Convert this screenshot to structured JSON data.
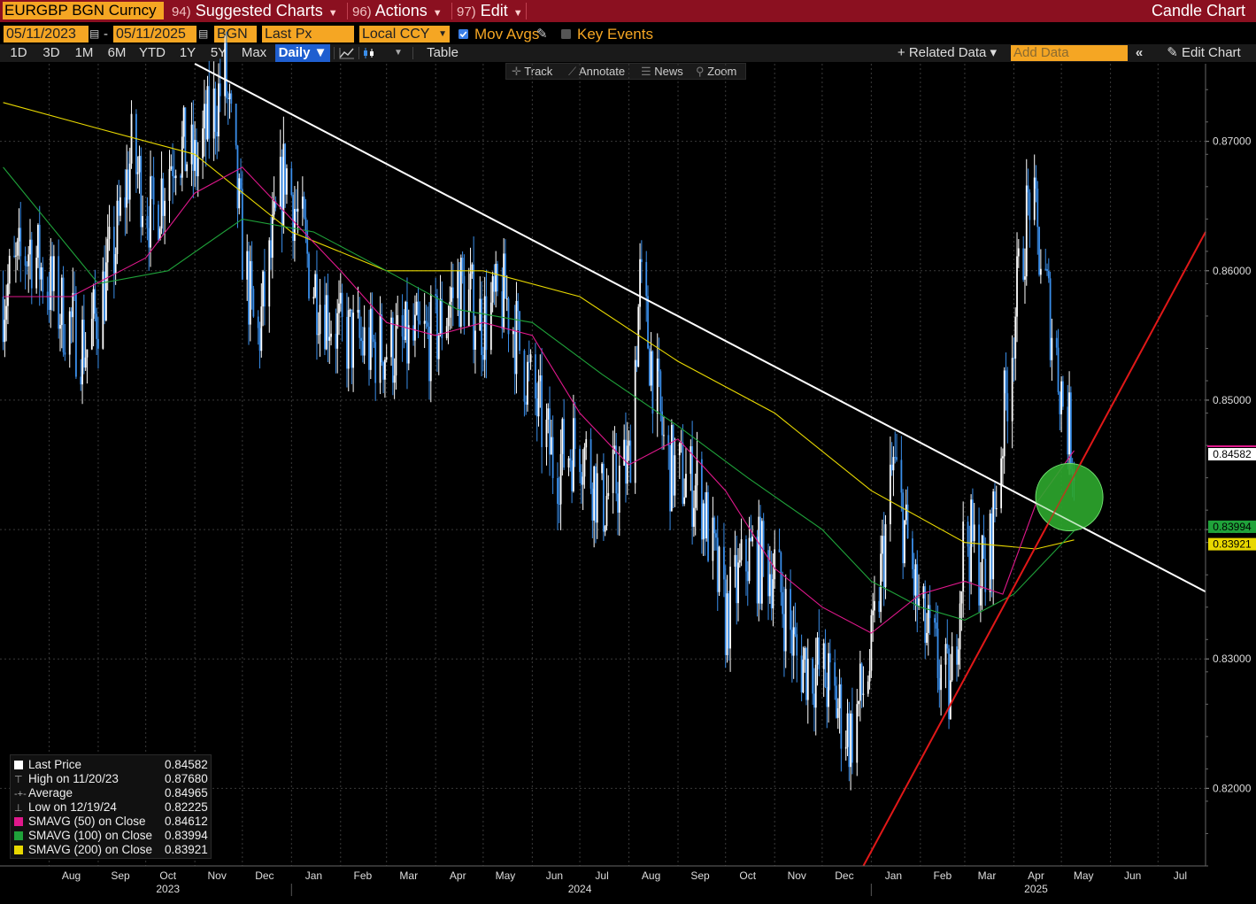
{
  "header": {
    "ticker": "EURGBP BGN Curncy",
    "menu": [
      {
        "num": "94)",
        "label": "Suggested Charts"
      },
      {
        "num": "96)",
        "label": "Actions"
      },
      {
        "num": "97)",
        "label": "Edit"
      }
    ],
    "title": "Candle Chart"
  },
  "controls": {
    "start_date": "05/11/2023",
    "date_sep": "-",
    "end_date": "05/11/2025",
    "source": "BGN",
    "field": "Last Px",
    "currency": "Local CCY",
    "mov_avgs": "Mov Avgs",
    "key_events": "Key Events"
  },
  "range_bar": {
    "ranges": [
      "1D",
      "3D",
      "1M",
      "6M",
      "YTD",
      "1Y",
      "5Y",
      "Max"
    ],
    "period": "Daily ▼",
    "table": "Table",
    "related": "+ Related Data ▾",
    "add_data_placeholder": "Add Data",
    "edit_chart": "Edit Chart"
  },
  "chart_tools": [
    "Track",
    "Annotate",
    "News",
    "Zoom"
  ],
  "colors": {
    "up_candle": "#ffffff",
    "down_candle": "#3a8eea",
    "sma50": "#e0188c",
    "sma100": "#1fa23a",
    "sma200": "#e8d800",
    "trend_down": "#ffffff",
    "trend_up": "#e01818",
    "highlight": "#2ea82e"
  },
  "legend": [
    {
      "label": "Last Price",
      "value": "0.84582",
      "swatch": "#ffffff"
    },
    {
      "label": "High on 11/20/23",
      "value": "0.87680",
      "swatch": "none"
    },
    {
      "label": "Average",
      "value": "0.84965",
      "swatch": "none"
    },
    {
      "label": "Low on 12/19/24",
      "value": "0.82225",
      "swatch": "none"
    },
    {
      "label": "SMAVG (50)  on Close",
      "value": "0.84612",
      "swatch": "#e0188c"
    },
    {
      "label": "SMAVG (100)  on Close",
      "value": "0.83994",
      "swatch": "#1fa23a"
    },
    {
      "label": "SMAVG (200)  on Close",
      "value": "0.83921",
      "swatch": "#e8d800"
    }
  ],
  "chart_data": {
    "type": "candlestick",
    "series_name": "EURGBP BGN Curncy",
    "frequency": "Daily",
    "x_start": "2023-07-01",
    "x_end": "2025-07-31",
    "ylim": [
      0.814,
      0.876
    ],
    "y_ticks": [
      0.82,
      0.83,
      0.84,
      0.85,
      0.86,
      0.87
    ],
    "y_tick_labels": [
      "0.82000",
      "0.83000",
      "0.84000",
      "0.85000",
      "0.86000",
      "0.87000"
    ],
    "month_labels": [
      {
        "date": "2023-08",
        "label": "Aug"
      },
      {
        "date": "2023-09",
        "label": "Sep"
      },
      {
        "date": "2023-10",
        "label": "Oct"
      },
      {
        "date": "2023-11",
        "label": "Nov"
      },
      {
        "date": "2023-12",
        "label": "Dec"
      },
      {
        "date": "2024-01",
        "label": "Jan"
      },
      {
        "date": "2024-02",
        "label": "Feb"
      },
      {
        "date": "2024-03",
        "label": "Mar"
      },
      {
        "date": "2024-04",
        "label": "Apr"
      },
      {
        "date": "2024-05",
        "label": "May"
      },
      {
        "date": "2024-06",
        "label": "Jun"
      },
      {
        "date": "2024-07",
        "label": "Jul"
      },
      {
        "date": "2024-08",
        "label": "Aug"
      },
      {
        "date": "2024-09",
        "label": "Sep"
      },
      {
        "date": "2024-10",
        "label": "Oct"
      },
      {
        "date": "2024-11",
        "label": "Nov"
      },
      {
        "date": "2024-12",
        "label": "Dec"
      },
      {
        "date": "2025-01",
        "label": "Jan"
      },
      {
        "date": "2025-02",
        "label": "Feb"
      },
      {
        "date": "2025-03",
        "label": "Mar"
      },
      {
        "date": "2025-04",
        "label": "Apr"
      },
      {
        "date": "2025-05",
        "label": "May"
      },
      {
        "date": "2025-06",
        "label": "Jun"
      },
      {
        "date": "2025-07",
        "label": "Jul"
      }
    ],
    "year_labels": [
      {
        "date": "2023-10-15",
        "label": "2023"
      },
      {
        "date": "2024-07-01",
        "label": "2024"
      },
      {
        "date": "2025-04-15",
        "label": "2025"
      }
    ],
    "close_path": [
      {
        "date": "2023-07-03",
        "value": 0.858
      },
      {
        "date": "2023-07-20",
        "value": 0.862
      },
      {
        "date": "2023-08-08",
        "value": 0.857
      },
      {
        "date": "2023-08-25",
        "value": 0.854
      },
      {
        "date": "2023-09-12",
        "value": 0.862
      },
      {
        "date": "2023-09-22",
        "value": 0.869
      },
      {
        "date": "2023-10-05",
        "value": 0.864
      },
      {
        "date": "2023-10-20",
        "value": 0.87
      },
      {
        "date": "2023-11-01",
        "value": 0.868
      },
      {
        "date": "2023-11-20",
        "value": 0.875
      },
      {
        "date": "2023-12-01",
        "value": 0.862
      },
      {
        "date": "2023-12-10",
        "value": 0.854
      },
      {
        "date": "2023-12-28",
        "value": 0.868
      },
      {
        "date": "2024-01-15",
        "value": 0.859
      },
      {
        "date": "2024-02-01",
        "value": 0.855
      },
      {
        "date": "2024-02-20",
        "value": 0.854
      },
      {
        "date": "2024-03-10",
        "value": 0.854
      },
      {
        "date": "2024-04-01",
        "value": 0.855
      },
      {
        "date": "2024-04-15",
        "value": 0.859
      },
      {
        "date": "2024-05-01",
        "value": 0.856
      },
      {
        "date": "2024-05-15",
        "value": 0.858
      },
      {
        "date": "2024-05-31",
        "value": 0.851
      },
      {
        "date": "2024-06-15",
        "value": 0.845
      },
      {
        "date": "2024-07-01",
        "value": 0.847
      },
      {
        "date": "2024-07-15",
        "value": 0.842
      },
      {
        "date": "2024-08-01",
        "value": 0.845
      },
      {
        "date": "2024-08-08",
        "value": 0.859
      },
      {
        "date": "2024-08-25",
        "value": 0.845
      },
      {
        "date": "2024-09-15",
        "value": 0.843
      },
      {
        "date": "2024-10-01",
        "value": 0.833
      },
      {
        "date": "2024-10-15",
        "value": 0.838
      },
      {
        "date": "2024-11-01",
        "value": 0.837
      },
      {
        "date": "2024-11-15",
        "value": 0.83
      },
      {
        "date": "2024-12-01",
        "value": 0.829
      },
      {
        "date": "2024-12-19",
        "value": 0.824
      },
      {
        "date": "2025-01-01",
        "value": 0.83
      },
      {
        "date": "2025-01-15",
        "value": 0.845
      },
      {
        "date": "2025-02-01",
        "value": 0.833
      },
      {
        "date": "2025-02-20",
        "value": 0.827
      },
      {
        "date": "2025-03-01",
        "value": 0.84
      },
      {
        "date": "2025-03-15",
        "value": 0.836
      },
      {
        "date": "2025-04-01",
        "value": 0.856
      },
      {
        "date": "2025-04-11",
        "value": 0.866
      },
      {
        "date": "2025-04-22",
        "value": 0.858
      },
      {
        "date": "2025-05-02",
        "value": 0.85
      },
      {
        "date": "2025-05-09",
        "value": 0.8458
      }
    ],
    "sma50": [
      {
        "date": "2023-07-03",
        "value": 0.858
      },
      {
        "date": "2023-08-15",
        "value": 0.858
      },
      {
        "date": "2023-10-01",
        "value": 0.861
      },
      {
        "date": "2023-11-01",
        "value": 0.866
      },
      {
        "date": "2023-12-01",
        "value": 0.868
      },
      {
        "date": "2024-01-01",
        "value": 0.864
      },
      {
        "date": "2024-02-01",
        "value": 0.86
      },
      {
        "date": "2024-03-01",
        "value": 0.856
      },
      {
        "date": "2024-04-01",
        "value": 0.855
      },
      {
        "date": "2024-05-01",
        "value": 0.856
      },
      {
        "date": "2024-06-01",
        "value": 0.855
      },
      {
        "date": "2024-07-01",
        "value": 0.849
      },
      {
        "date": "2024-08-01",
        "value": 0.845
      },
      {
        "date": "2024-09-01",
        "value": 0.847
      },
      {
        "date": "2024-10-01",
        "value": 0.843
      },
      {
        "date": "2024-11-01",
        "value": 0.837
      },
      {
        "date": "2024-12-01",
        "value": 0.834
      },
      {
        "date": "2025-01-01",
        "value": 0.832
      },
      {
        "date": "2025-02-01",
        "value": 0.835
      },
      {
        "date": "2025-03-01",
        "value": 0.836
      },
      {
        "date": "2025-03-25",
        "value": 0.835
      },
      {
        "date": "2025-04-15",
        "value": 0.842
      },
      {
        "date": "2025-05-09",
        "value": 0.8461
      }
    ],
    "sma100": [
      {
        "date": "2023-07-03",
        "value": 0.868
      },
      {
        "date": "2023-09-01",
        "value": 0.859
      },
      {
        "date": "2023-10-15",
        "value": 0.86
      },
      {
        "date": "2023-12-01",
        "value": 0.864
      },
      {
        "date": "2024-01-15",
        "value": 0.863
      },
      {
        "date": "2024-03-01",
        "value": 0.86
      },
      {
        "date": "2024-04-15",
        "value": 0.857
      },
      {
        "date": "2024-06-01",
        "value": 0.856
      },
      {
        "date": "2024-07-15",
        "value": 0.852
      },
      {
        "date": "2024-09-01",
        "value": 0.848
      },
      {
        "date": "2024-10-15",
        "value": 0.844
      },
      {
        "date": "2024-12-01",
        "value": 0.84
      },
      {
        "date": "2025-01-01",
        "value": 0.836
      },
      {
        "date": "2025-02-01",
        "value": 0.834
      },
      {
        "date": "2025-03-01",
        "value": 0.833
      },
      {
        "date": "2025-04-01",
        "value": 0.835
      },
      {
        "date": "2025-05-09",
        "value": 0.8399
      }
    ],
    "sma200": [
      {
        "date": "2023-07-03",
        "value": 0.873
      },
      {
        "date": "2023-09-01",
        "value": 0.871
      },
      {
        "date": "2023-11-01",
        "value": 0.869
      },
      {
        "date": "2024-01-01",
        "value": 0.863
      },
      {
        "date": "2024-03-01",
        "value": 0.86
      },
      {
        "date": "2024-05-01",
        "value": 0.86
      },
      {
        "date": "2024-07-01",
        "value": 0.858
      },
      {
        "date": "2024-09-01",
        "value": 0.853
      },
      {
        "date": "2024-11-01",
        "value": 0.849
      },
      {
        "date": "2025-01-01",
        "value": 0.843
      },
      {
        "date": "2025-03-01",
        "value": 0.839
      },
      {
        "date": "2025-04-15",
        "value": 0.8385
      },
      {
        "date": "2025-05-09",
        "value": 0.8392
      }
    ],
    "trendlines": [
      {
        "name": "down",
        "color": "#ffffff",
        "points": [
          {
            "date": "2023-11-01",
            "value": 0.876
          },
          {
            "date": "2025-07-31",
            "value": 0.8352
          }
        ]
      },
      {
        "name": "up",
        "color": "#e01818",
        "points": [
          {
            "date": "2024-12-27",
            "value": 0.814
          },
          {
            "date": "2025-07-31",
            "value": 0.863
          }
        ]
      }
    ],
    "highlight": {
      "date": "2025-05-06",
      "value": 0.8425,
      "color": "#2ea82e"
    },
    "price_tags": [
      {
        "label": "0.84582",
        "value": 0.84582,
        "bg": "#ffffff",
        "fg": "#000000",
        "line": "#e0188c"
      },
      {
        "label": "0.83994",
        "value": 0.83994,
        "bg": "#1fa23a",
        "fg": "#000000"
      },
      {
        "label": "0.83921",
        "value": 0.83921,
        "bg": "#e8d800",
        "fg": "#000000"
      }
    ]
  }
}
